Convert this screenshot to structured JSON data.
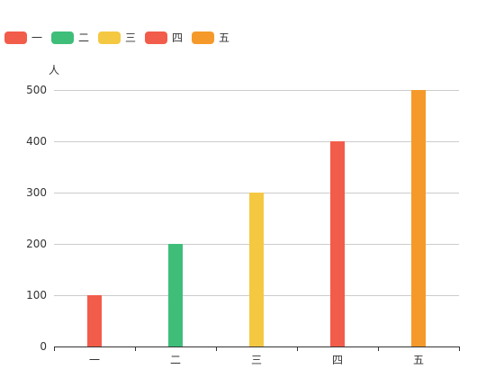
{
  "chart_data": {
    "type": "bar",
    "categories": [
      "一",
      "二",
      "三",
      "四",
      "五"
    ],
    "values": [
      100,
      200,
      300,
      400,
      500
    ],
    "colors": [
      "#f25c4a",
      "#3fbe7a",
      "#f5c842",
      "#f25c4a",
      "#f59a2a"
    ],
    "legend": {
      "placement": "top-left",
      "items": [
        {
          "label": "一",
          "color": "#f25c4a"
        },
        {
          "label": "二",
          "color": "#3fbe7a"
        },
        {
          "label": "三",
          "color": "#f5c842"
        },
        {
          "label": "四",
          "color": "#f25c4a"
        },
        {
          "label": "五",
          "color": "#f59a2a"
        }
      ]
    },
    "ylabel": "人",
    "ylim": [
      0,
      500
    ],
    "yticks": [
      0,
      100,
      200,
      300,
      400,
      500
    ],
    "grid": true
  }
}
